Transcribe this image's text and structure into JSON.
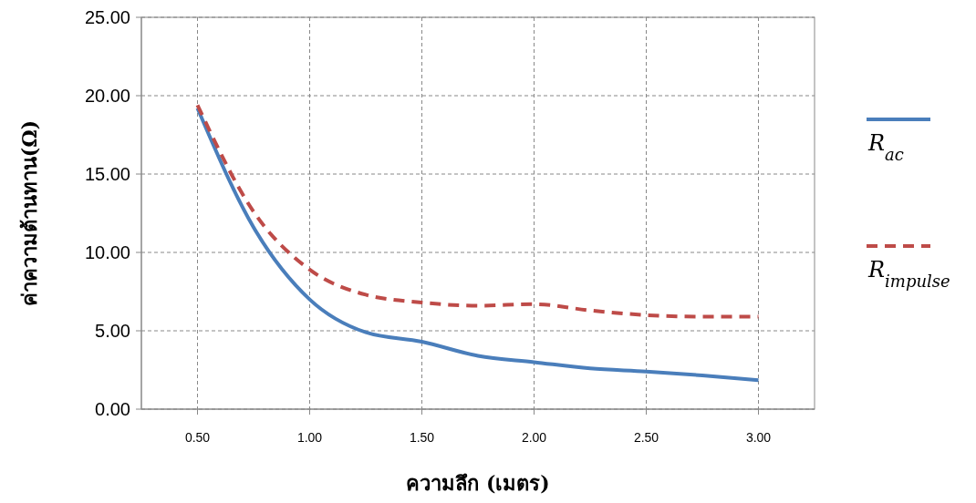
{
  "chart_data": {
    "type": "line",
    "xlabel": "ความลึก (เมตร)",
    "ylabel": "ค่าความต้านทาน(Ω)",
    "x": [
      0.5,
      0.75,
      1.0,
      1.25,
      1.5,
      1.75,
      2.0,
      2.25,
      2.5,
      2.75,
      3.0
    ],
    "xlim": [
      0.25,
      3.25
    ],
    "xticks": [
      {
        "value": 0.5,
        "label": "0.50"
      },
      {
        "value": 1,
        "label": "1.00"
      },
      {
        "value": 1.5,
        "label": "1.50"
      },
      {
        "value": 2,
        "label": "2.00"
      },
      {
        "value": 2.5,
        "label": "2.50"
      },
      {
        "value": 3,
        "label": "3.00"
      }
    ],
    "ylim": [
      0,
      25
    ],
    "yticks": [
      {
        "value": 0,
        "label": "0.00"
      },
      {
        "value": 5,
        "label": "5.00"
      },
      {
        "value": 10,
        "label": "10.00"
      },
      {
        "value": 15,
        "label": "15.00"
      },
      {
        "value": 20,
        "label": "20.00"
      },
      {
        "value": 25,
        "label": "25.00"
      }
    ],
    "grid": true,
    "legend": "right",
    "marker": "none",
    "series": [
      {
        "name": "R$_{ac}$",
        "color": "#4a7ebb",
        "line_style": "solid",
        "values": [
          19.2,
          11.6,
          7.0,
          4.9,
          4.3,
          3.4,
          3.0,
          2.6,
          2.4,
          2.15,
          1.85
        ]
      },
      {
        "name": "R$_{impulse}$",
        "color": "#be4b48",
        "line_style": "dashed",
        "values": [
          19.4,
          12.6,
          8.9,
          7.3,
          6.8,
          6.6,
          6.7,
          6.3,
          6.0,
          5.9,
          5.9
        ]
      }
    ]
  }
}
